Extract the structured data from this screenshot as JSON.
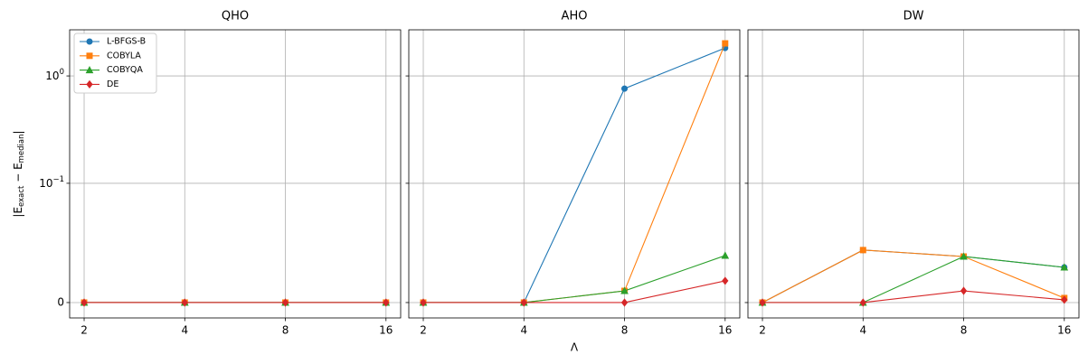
{
  "chart_data": [
    {
      "type": "line",
      "title": "QHO",
      "ylabel_parts": [
        "|E",
        "exact",
        " − E",
        "median",
        "|"
      ],
      "x": [
        2,
        4,
        8,
        16
      ],
      "xscale": "log2",
      "xlim": [
        1.81,
        17.7
      ],
      "xticks": [
        2,
        4,
        8,
        16
      ],
      "yscale": "symlog",
      "linthresh": 0.1,
      "linscale": 1,
      "ylim": [
        -0.0129,
        2.69
      ],
      "yticks": [
        0,
        {
          "value": 0.1,
          "label": "10",
          "exponent": "−1"
        },
        {
          "value": 1,
          "label": "10",
          "exponent": "0"
        }
      ],
      "grid": true,
      "legend": "upper left",
      "series": [
        {
          "name": "L-BFGS-B",
          "color": "#1f77b4",
          "marker": "o",
          "values": [
            0,
            0,
            0,
            0
          ]
        },
        {
          "name": "COBYLA",
          "color": "#ff7f0e",
          "marker": "s",
          "values": [
            0,
            0,
            0,
            0
          ]
        },
        {
          "name": "COBYQA",
          "color": "#2ca02c",
          "marker": "^",
          "values": [
            0,
            0,
            0,
            0
          ]
        },
        {
          "name": "DE",
          "color": "#d62728",
          "marker": "D",
          "values": [
            0,
            0,
            0,
            0
          ]
        }
      ]
    },
    {
      "type": "line",
      "title": "AHO",
      "xlabel": "Λ",
      "x": [
        2,
        4,
        8,
        16
      ],
      "xscale": "log2",
      "xlim": [
        1.81,
        17.7
      ],
      "xticks": [
        2,
        4,
        8,
        16
      ],
      "yscale": "symlog",
      "linthresh": 0.1,
      "linscale": 1,
      "ylim": [
        -0.0129,
        2.69
      ],
      "yticks": [
        0,
        0.1,
        1
      ],
      "grid": true,
      "series": [
        {
          "color": "#1f77b4",
          "marker": "o",
          "values": [
            0,
            0,
            0.762,
            1.82
          ]
        },
        {
          "color": "#ff7f0e",
          "marker": "s",
          "values": [
            0,
            0,
            0.0098,
            2.01
          ]
        },
        {
          "color": "#2ca02c",
          "marker": "^",
          "values": [
            0,
            0,
            0.0098,
            0.0394
          ]
        },
        {
          "color": "#d62728",
          "marker": "D",
          "values": [
            0,
            0,
            0,
            0.0182
          ]
        }
      ]
    },
    {
      "type": "line",
      "title": "DW",
      "x": [
        2,
        4,
        8,
        16
      ],
      "xscale": "log2",
      "xlim": [
        1.81,
        17.7
      ],
      "xticks": [
        2,
        4,
        8,
        16
      ],
      "yscale": "symlog",
      "linthresh": 0.1,
      "linscale": 1,
      "ylim": [
        -0.0129,
        2.69
      ],
      "yticks": [
        0,
        0.1,
        1
      ],
      "grid": true,
      "series": [
        {
          "color": "#1f77b4",
          "marker": "o",
          "values": [
            0,
            0.044,
            0.0386,
            0.0295
          ]
        },
        {
          "color": "#ff7f0e",
          "marker": "s",
          "values": [
            0,
            0.044,
            0.0386,
            0.0038
          ]
        },
        {
          "color": "#2ca02c",
          "marker": "^",
          "values": [
            0,
            0,
            0.0386,
            0.0295
          ]
        },
        {
          "color": "#d62728",
          "marker": "D",
          "values": [
            0,
            0,
            0.0098,
            0.0023
          ]
        }
      ]
    }
  ]
}
